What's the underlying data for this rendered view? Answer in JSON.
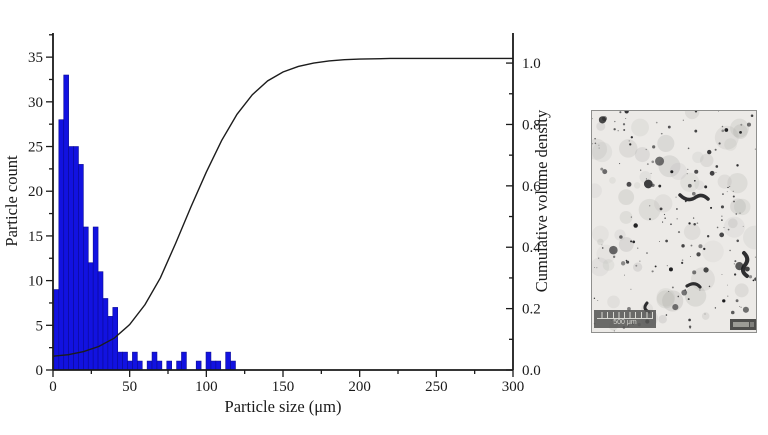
{
  "chart_data": {
    "type": "histogram+line",
    "title": "",
    "xlabel": "Particle size (μm)",
    "ylabel_left": "Particle count",
    "ylabel_right": "Cumulative volume density",
    "xlim": [
      0,
      300
    ],
    "ylim_left": [
      0,
      37.7
    ],
    "ylim_right": [
      0,
      1.098
    ],
    "x_ticks": [
      0,
      50,
      100,
      150,
      200,
      250,
      300
    ],
    "x_minor_ticks": [
      25,
      75,
      125,
      175,
      225,
      275
    ],
    "y_ticks_left": [
      0,
      5,
      10,
      15,
      20,
      25,
      30,
      35
    ],
    "y_minor_ticks_left": [
      2.5,
      7.5,
      12.5,
      17.5,
      22.5,
      27.5,
      32.5,
      37.5
    ],
    "y_ticks_right": [
      "0.0",
      "0.2",
      "0.4",
      "0.6",
      "0.8",
      "1.0"
    ],
    "y_minor_ticks_right": [
      0.1,
      0.3,
      0.5,
      0.7,
      0.9
    ],
    "grid": false,
    "legend": false,
    "colors": {
      "bars": "#1212e0",
      "bar_edge": "#0a0a96",
      "curve": "#1c1c1c",
      "axis": "#1a1a1a"
    },
    "histogram": {
      "series_name": "Particle count",
      "bin_width_um": 3.2,
      "bins_start_um": 0.6,
      "counts": [
        9,
        28,
        33,
        25,
        25,
        23,
        16,
        12,
        16,
        11,
        8,
        6,
        7,
        2,
        2,
        1,
        2,
        1,
        0,
        1,
        2,
        1,
        0,
        1,
        0,
        1,
        2,
        0,
        0,
        1,
        0,
        2,
        1,
        1,
        0,
        2,
        1
      ]
    },
    "cumulative_curve": {
      "series_name": "Cumulative volume density",
      "points": [
        [
          0,
          0.045
        ],
        [
          10,
          0.05
        ],
        [
          20,
          0.06
        ],
        [
          30,
          0.077
        ],
        [
          40,
          0.104
        ],
        [
          50,
          0.148
        ],
        [
          60,
          0.213
        ],
        [
          70,
          0.3
        ],
        [
          80,
          0.413
        ],
        [
          90,
          0.532
        ],
        [
          100,
          0.645
        ],
        [
          110,
          0.748
        ],
        [
          120,
          0.833
        ],
        [
          130,
          0.897
        ],
        [
          140,
          0.942
        ],
        [
          150,
          0.971
        ],
        [
          160,
          0.989
        ],
        [
          170,
          1.0
        ],
        [
          180,
          1.007
        ],
        [
          190,
          1.011
        ],
        [
          200,
          1.013
        ],
        [
          220,
          1.015
        ],
        [
          250,
          1.015
        ],
        [
          300,
          1.015
        ]
      ]
    }
  },
  "micrograph": {
    "scale_label": "500 μm"
  }
}
